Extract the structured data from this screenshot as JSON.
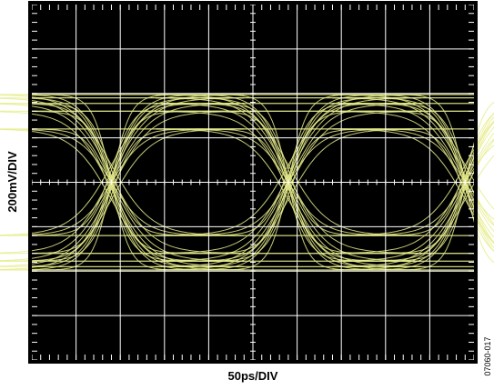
{
  "chart_data": {
    "type": "line",
    "title": "",
    "xlabel": "50ps/DIV",
    "ylabel": "200mV/DIV",
    "figure_id": "07060-017",
    "x_unit": "ps",
    "y_unit": "mV",
    "x_per_div": 50,
    "y_per_div": 200,
    "x_divisions": 10,
    "y_divisions": 8,
    "xlim": [
      -250,
      250
    ],
    "ylim": [
      -800,
      800
    ],
    "grid": true,
    "background": "#000000",
    "trace_color": "#e6ec8c",
    "grid_color": "#ffffff",
    "unit_interval_ps": 200,
    "crossing_times_ps": [
      -160,
      40,
      240
    ],
    "levels_mv": {
      "high": [
        395,
        380,
        355,
        320,
        240
      ],
      "low": [
        -395,
        -380,
        -355,
        -320,
        -240
      ]
    }
  }
}
